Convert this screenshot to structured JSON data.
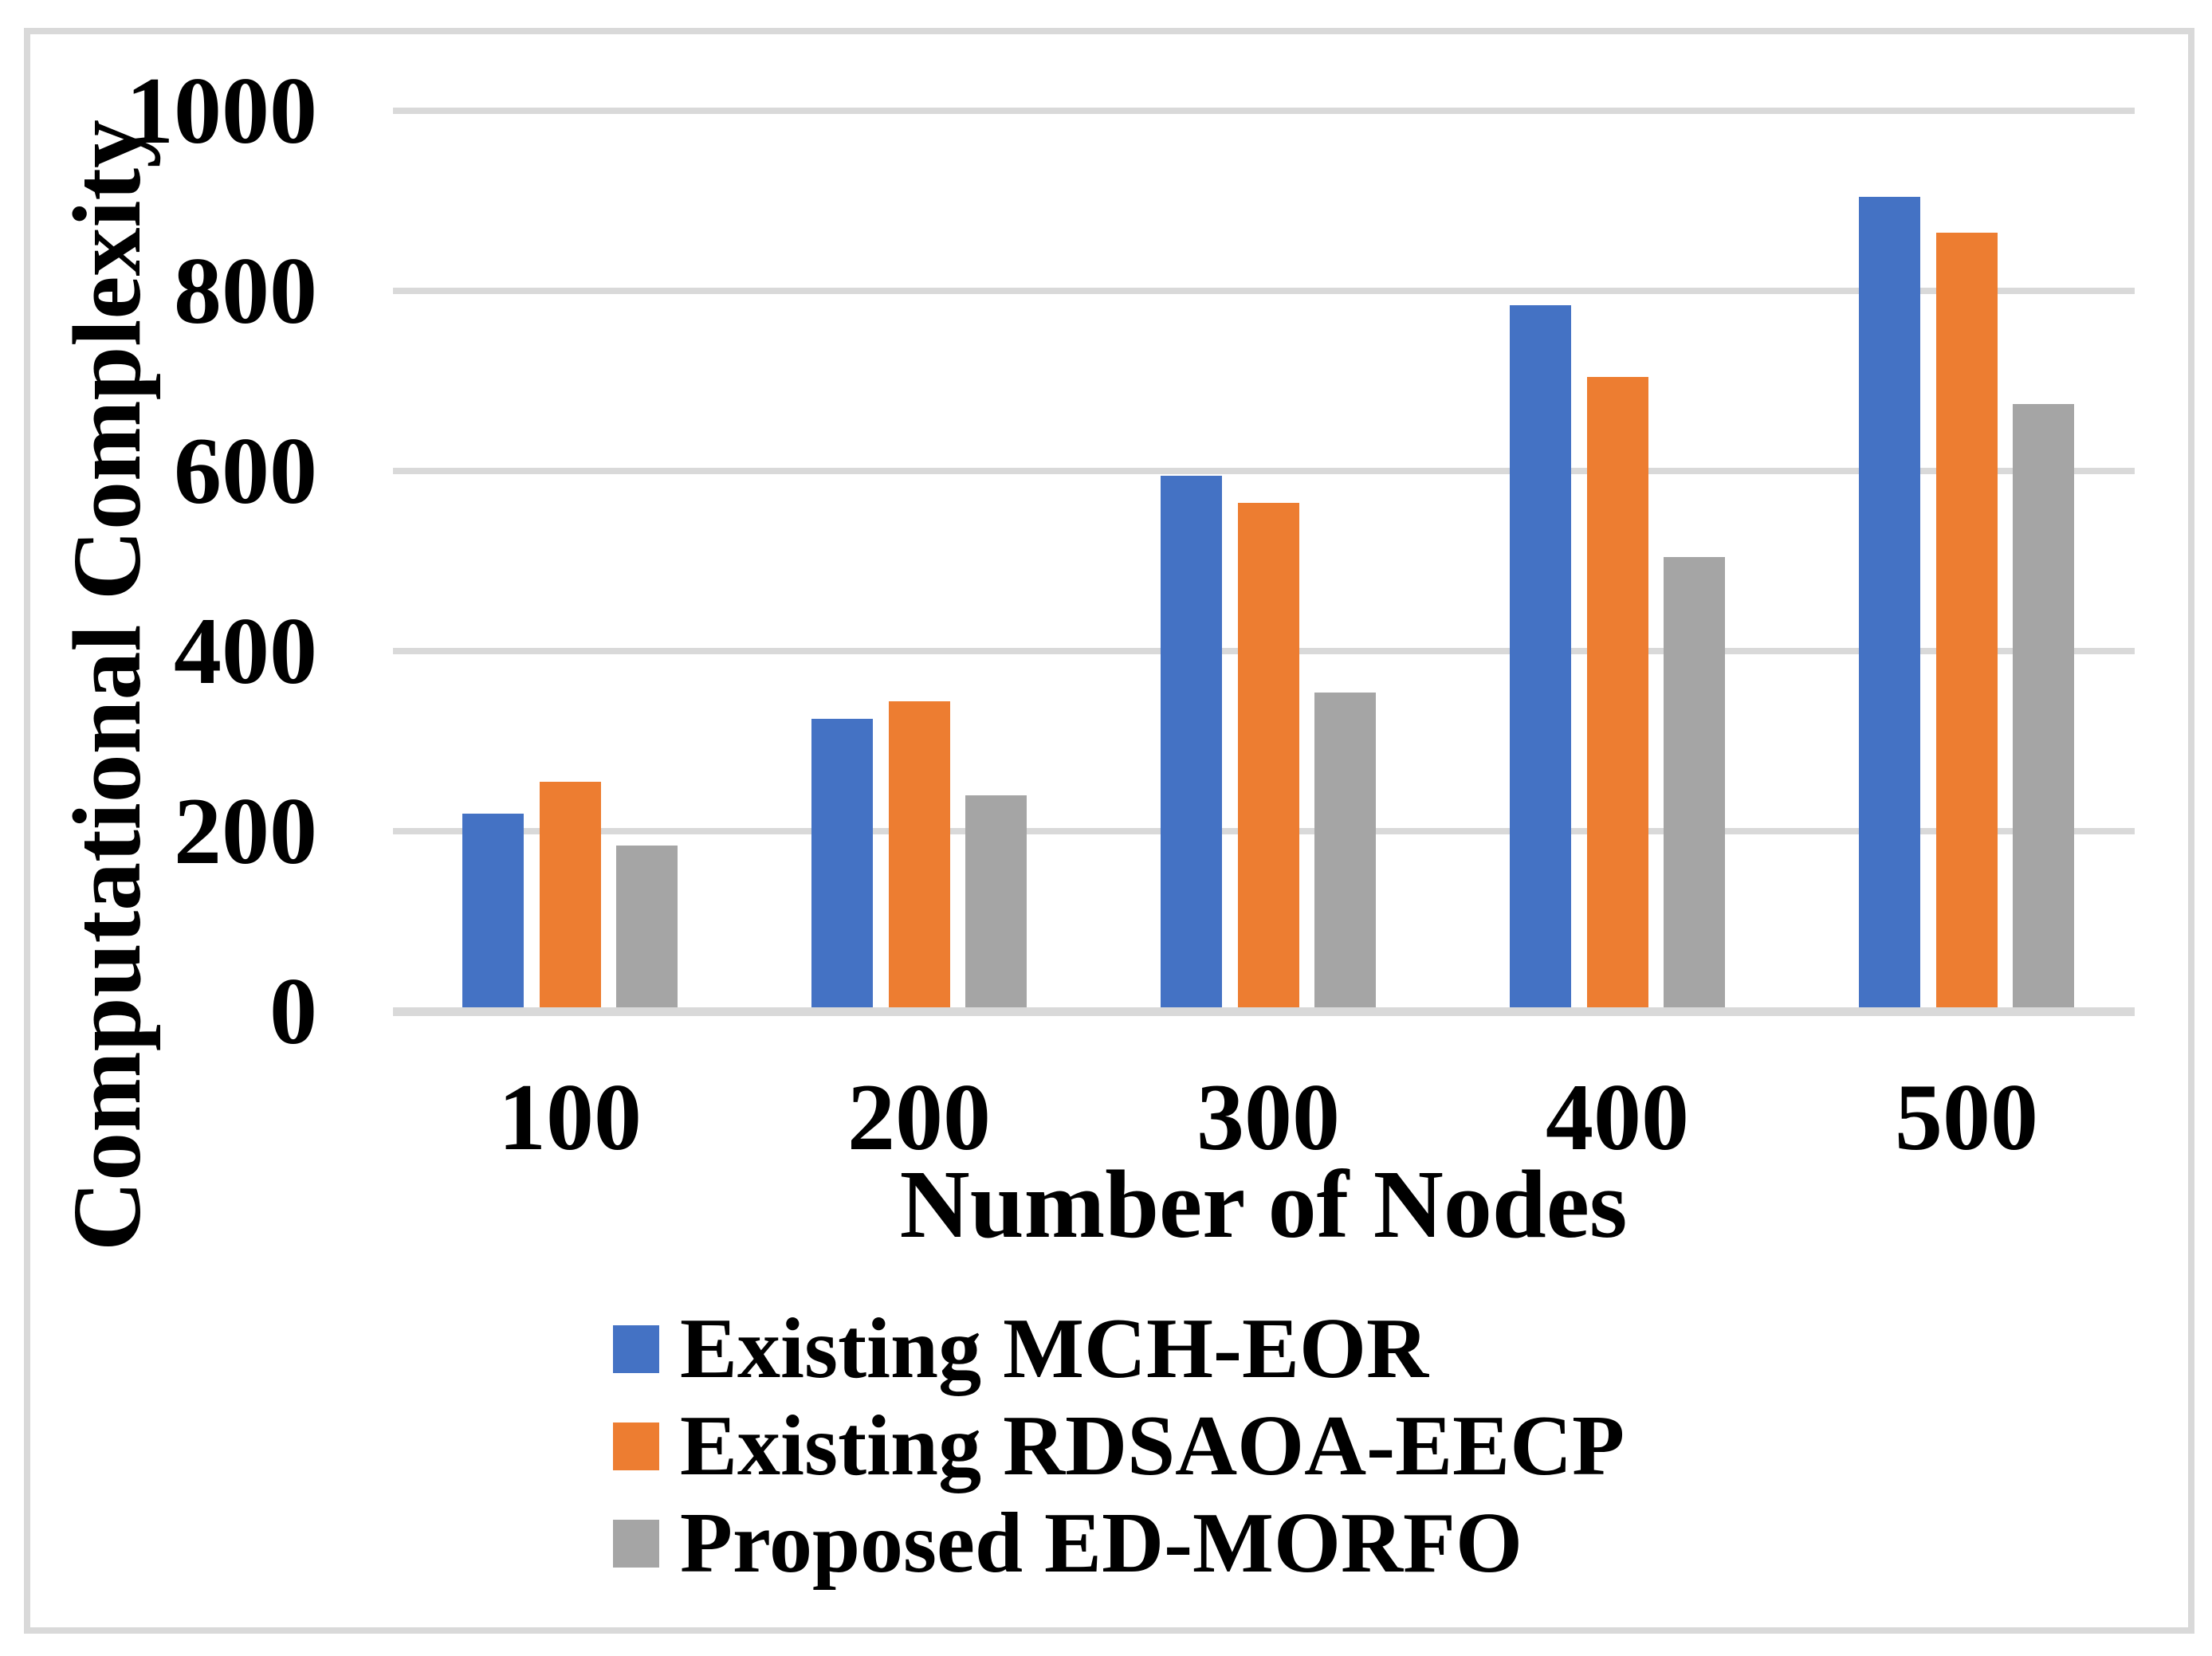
{
  "chart_data": {
    "type": "bar",
    "title": "",
    "xlabel": "Number of Nodes",
    "ylabel": "Computational Complexity",
    "categories": [
      "100",
      "200",
      "300",
      "400",
      "500"
    ],
    "series": [
      {
        "name": "Existing MCH-EOR",
        "color": "#4472C4",
        "values": [
          215,
          320,
          590,
          780,
          900
        ]
      },
      {
        "name": "Existing RDSAOA-EECP",
        "color": "#ED7D31",
        "values": [
          250,
          340,
          560,
          700,
          860
        ]
      },
      {
        "name": "Proposed ED-MORFO",
        "color": "#A5A5A5",
        "values": [
          180,
          235,
          350,
          500,
          670
        ]
      }
    ],
    "y_ticks": [
      0,
      200,
      400,
      600,
      800,
      1000
    ],
    "ylim": [
      0,
      1000
    ],
    "grid": true,
    "legend_position": "bottom-left",
    "gridline_color": "#D9D9D9",
    "axis_line_color": "#D9D9D9",
    "border_color": "#D9D9D9",
    "text_color": "#000000",
    "background_color": "#FFFFFF"
  }
}
